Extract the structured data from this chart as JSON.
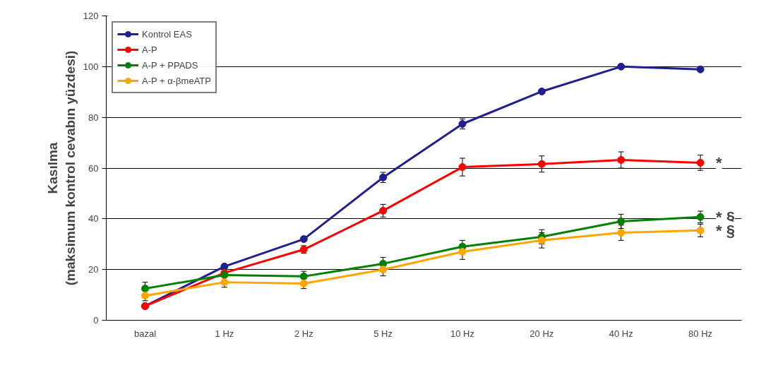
{
  "chart_data": {
    "type": "line",
    "ylabel": "Kasılma\n(maksimum kontrol cevabın yüzdesi)",
    "categories": [
      "bazal",
      "1 Hz",
      "2 Hz",
      "5 Hz",
      "10 Hz",
      "20 Hz",
      "40 Hz",
      "80 Hz"
    ],
    "series": [
      {
        "name": "Kontrol EAS",
        "color": "#1f1f8f",
        "values": [
          5.6,
          21.2,
          32,
          56.3,
          77.4,
          90.2,
          100,
          98.9
        ],
        "errors": [
          null,
          null,
          null,
          2,
          2,
          null,
          null,
          null
        ]
      },
      {
        "name": "A-P",
        "color": "#ff0000",
        "values": [
          5.6,
          18.7,
          27.9,
          43.2,
          60.4,
          61.6,
          63.2,
          62.1
        ],
        "errors": [
          null,
          null,
          1.5,
          2.5,
          3.5,
          3.2,
          3.2,
          3
        ]
      },
      {
        "name": "A-P + PPADS",
        "color": "#008000",
        "values": [
          12.5,
          17.8,
          17.3,
          22.3,
          29,
          32.9,
          39,
          40.7
        ],
        "errors": [
          2.5,
          null,
          2,
          2.5,
          2.5,
          2.8,
          2.8,
          2.3
        ]
      },
      {
        "name": "A-P + α-βmeATP",
        "color": "#ffa500",
        "values": [
          9.7,
          15,
          14.5,
          20,
          27,
          31.5,
          34.5,
          35.4
        ],
        "errors": [
          2,
          2,
          2,
          2.5,
          3,
          3,
          3,
          2.5
        ]
      }
    ],
    "ylim": [
      0,
      120
    ],
    "yticks": [
      0,
      20,
      40,
      60,
      80,
      100,
      120
    ],
    "grid": "y",
    "legend": "top left",
    "marker": "circle",
    "line_style": "solid",
    "annotations": [
      {
        "text": "*",
        "x": "80 Hz",
        "y": 62.1
      },
      {
        "text": "* §",
        "x": "80 Hz",
        "y": 40.7
      },
      {
        "text": "* §",
        "x": "80 Hz",
        "y": 35.4
      }
    ]
  }
}
